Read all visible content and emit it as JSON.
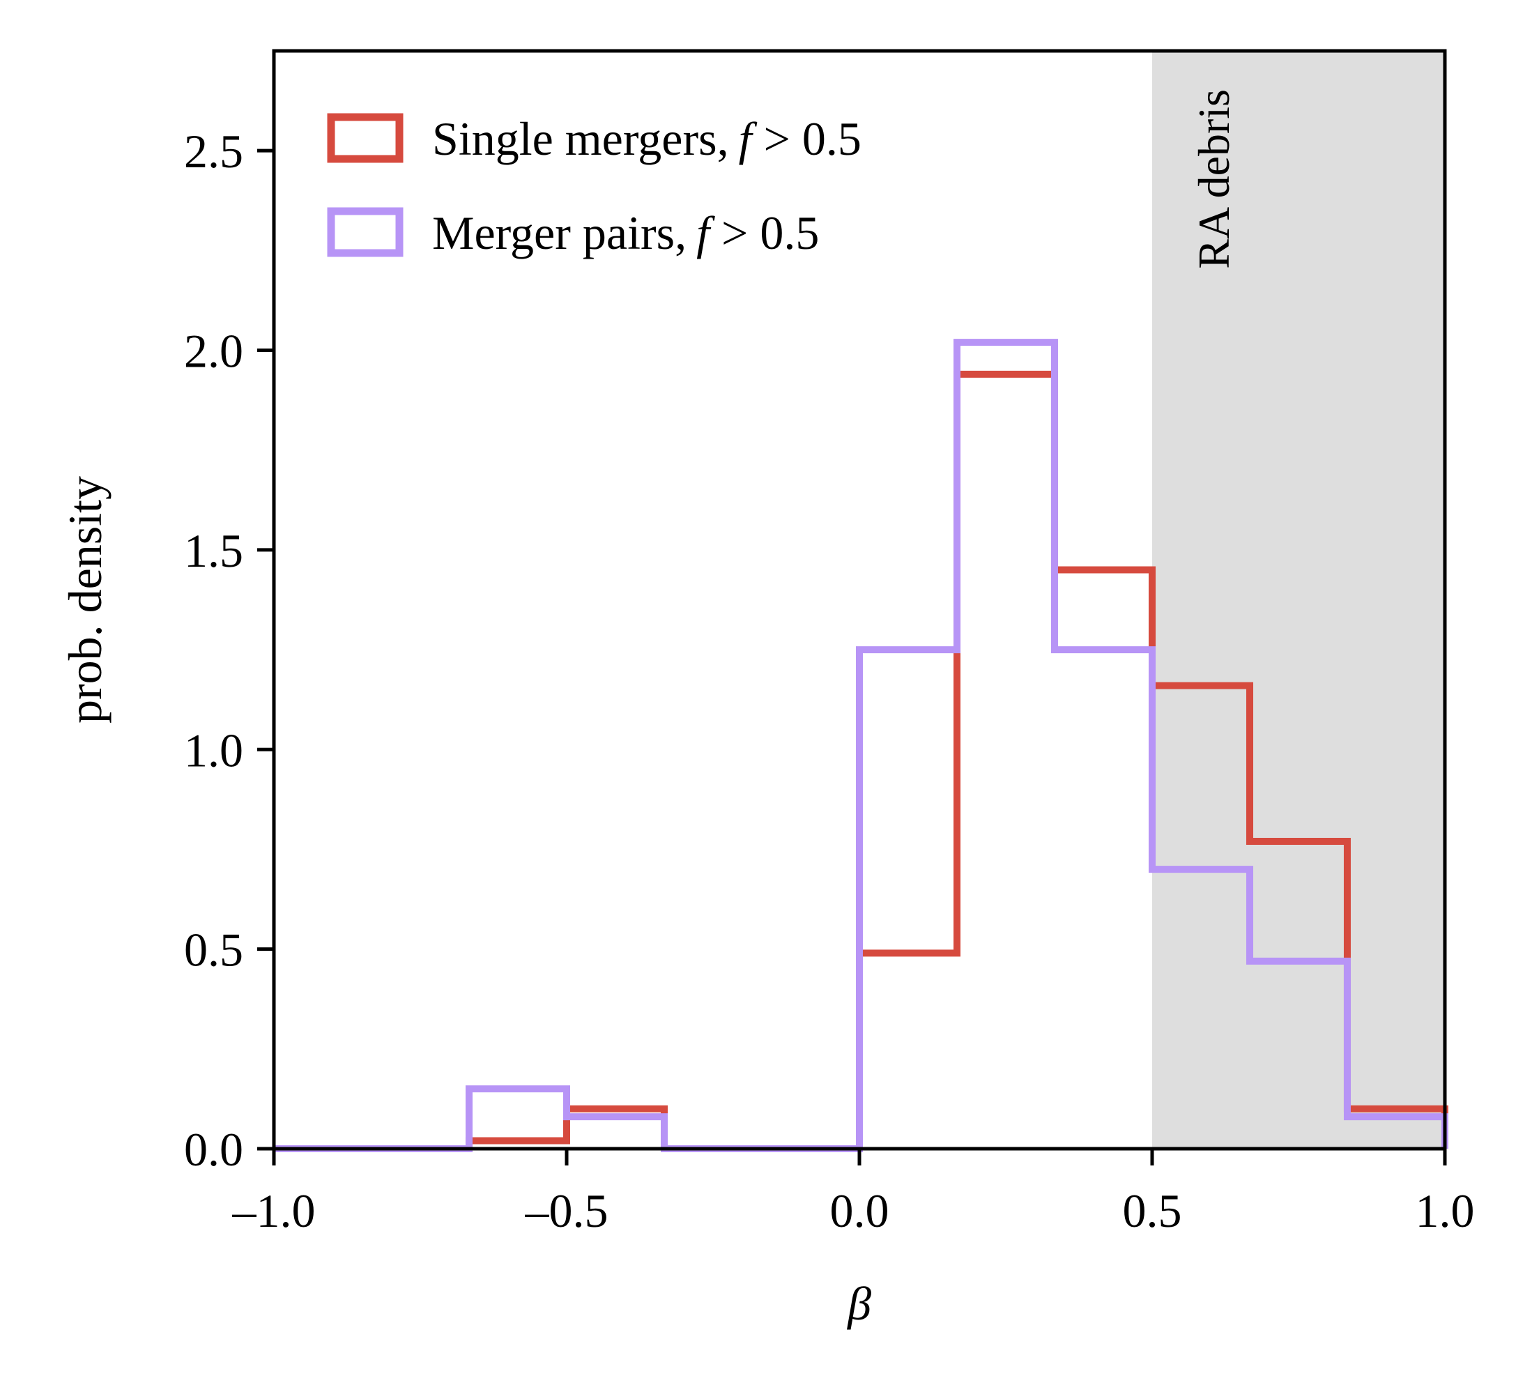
{
  "chart_data": {
    "type": "histogram-step",
    "xlabel": "β",
    "ylabel": "prob. density",
    "xlim": [
      -1.0,
      1.0
    ],
    "ylim": [
      0.0,
      2.75
    ],
    "xticks": [
      -1.0,
      -0.5,
      0.0,
      0.5,
      1.0
    ],
    "xtick_labels": [
      "–1.0",
      "–0.5",
      "0.0",
      "0.5",
      "1.0"
    ],
    "yticks": [
      0.0,
      0.5,
      1.0,
      1.5,
      2.0,
      2.5
    ],
    "ytick_labels": [
      "0.0",
      "0.5",
      "1.0",
      "1.5",
      "2.0",
      "2.5"
    ],
    "bin_edges": [
      -1.0,
      -0.8333,
      -0.6667,
      -0.5,
      -0.3333,
      -0.1667,
      0.0,
      0.1667,
      0.3333,
      0.5,
      0.6667,
      0.8333,
      1.0
    ],
    "series": [
      {
        "name": "Single mergers, f > 0.5",
        "legend_main": "Single mergers,",
        "legend_f": "f",
        "legend_cond": " > 0.5",
        "color": "#d64a3e",
        "values": [
          0.0,
          0.0,
          0.02,
          0.1,
          0.0,
          0.0,
          0.49,
          1.94,
          1.45,
          1.16,
          0.77,
          0.1
        ]
      },
      {
        "name": "Merger pairs, f > 0.5",
        "legend_main": "Merger pairs,",
        "legend_f": "f",
        "legend_cond": " > 0.5",
        "color": "#b794f6",
        "values": [
          0.0,
          0.0,
          0.15,
          0.08,
          0.0,
          0.0,
          1.25,
          2.02,
          1.25,
          0.7,
          0.47,
          0.08
        ]
      }
    ],
    "shaded_region": {
      "x_range": [
        0.5,
        1.0
      ],
      "label": "RA debris",
      "color": "#dedede",
      "label_color": "#8c8c8c"
    },
    "legend_position": "top-left",
    "grid": false
  }
}
